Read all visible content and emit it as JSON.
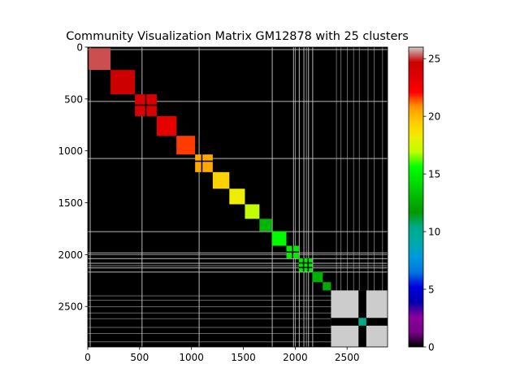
{
  "chart_data": {
    "type": "heatmap",
    "title": "Community Visualization Matrix GM12878 with 25 clusters",
    "xlabel": "",
    "ylabel": "",
    "matrix_size": 2890,
    "xlim": [
      0,
      2890
    ],
    "ylim": [
      2890,
      0
    ],
    "x_ticks": [
      0,
      500,
      1000,
      1500,
      2000,
      2500
    ],
    "y_ticks": [
      0,
      500,
      1000,
      1500,
      2000,
      2500
    ],
    "colorbar": {
      "colormap": "nipy_spectral",
      "range": [
        0,
        26
      ],
      "ticks": [
        0,
        5,
        10,
        15,
        20,
        25
      ]
    },
    "background_value": 0,
    "clusters": [
      {
        "start": 10,
        "end": 220,
        "value": 25.2
      },
      {
        "start": 220,
        "end": 455,
        "value": 24.6
      },
      {
        "start": 455,
        "end": 665,
        "value": 23.8,
        "sub": [
          560
        ]
      },
      {
        "start": 665,
        "end": 855,
        "value": 23.0
      },
      {
        "start": 855,
        "end": 1035,
        "value": 21.6
      },
      {
        "start": 1035,
        "end": 1205,
        "value": 20.4,
        "sub": [
          1100
        ]
      },
      {
        "start": 1205,
        "end": 1365,
        "value": 19.3
      },
      {
        "start": 1365,
        "end": 1515,
        "value": 18.2
      },
      {
        "start": 1515,
        "end": 1655,
        "value": 17.1
      },
      {
        "start": 1655,
        "end": 1775,
        "value": 12.8
      },
      {
        "start": 1775,
        "end": 1915,
        "value": 15.4
      },
      {
        "start": 1915,
        "end": 2035,
        "value": 15.0,
        "sub": [
          1975
        ]
      },
      {
        "start": 2035,
        "end": 2165,
        "value": 14.8,
        "sub": [
          2080,
          2125
        ]
      },
      {
        "start": 2165,
        "end": 2265,
        "value": 12.6
      },
      {
        "start": 2265,
        "end": 2345,
        "value": 12.4
      },
      {
        "start": 2345,
        "end": 2890,
        "value": 26.0,
        "hole": [
          2610,
          2685
        ],
        "hole_value": 10.3
      }
    ],
    "stripes": [
      {
        "pos": 2395,
        "width": 3
      },
      {
        "pos": 2440,
        "width": 3
      },
      {
        "pos": 2500,
        "width": 3
      },
      {
        "pos": 2560,
        "width": 3
      },
      {
        "pos": 2615,
        "width": 3
      },
      {
        "pos": 2700,
        "width": 3
      },
      {
        "pos": 2760,
        "width": 3
      },
      {
        "pos": 2840,
        "width": 3
      },
      {
        "pos": 1980,
        "width": 7
      },
      {
        "pos": 2035,
        "width": 7
      },
      {
        "pos": 2080,
        "width": 7
      },
      {
        "pos": 2125,
        "width": 7
      },
      {
        "pos": 2165,
        "width": 7
      },
      {
        "pos": 1775,
        "width": 7
      },
      {
        "pos": 20,
        "width": 7
      },
      {
        "pos": 1070,
        "width": 7
      },
      {
        "pos": 520,
        "width": 7
      },
      {
        "pos": 2000,
        "width": 5
      },
      {
        "pos": 2105,
        "width": 5
      }
    ]
  }
}
